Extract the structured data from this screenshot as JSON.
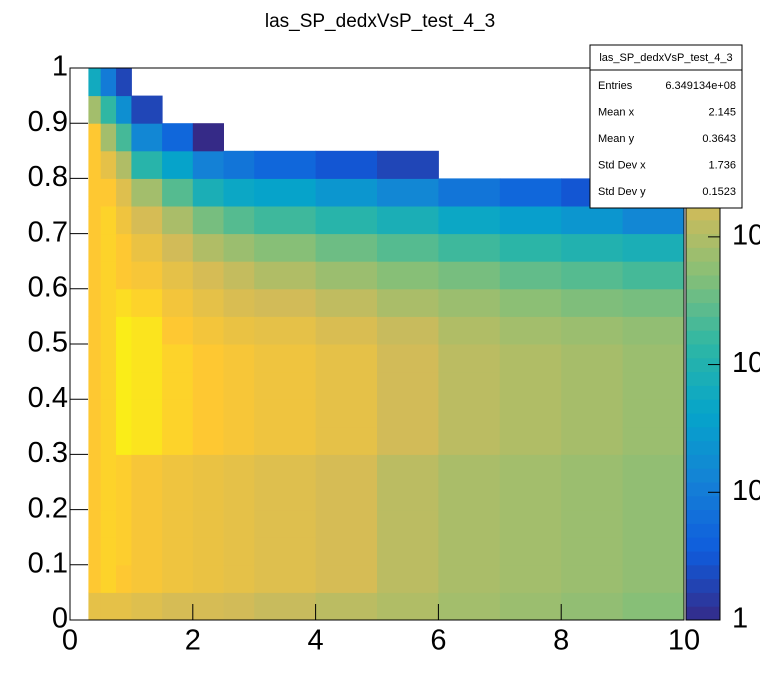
{
  "chart_data": {
    "type": "heatmap",
    "title": "las_SP_dedxVsP_test_4_3",
    "xlim": [
      0,
      10
    ],
    "ylim": [
      0,
      1
    ],
    "xticks": [
      0,
      2,
      4,
      6,
      8,
      10
    ],
    "yticks": [
      0,
      0.1,
      0.2,
      0.3,
      0.4,
      0.5,
      0.6,
      0.7,
      0.8,
      0.9,
      1
    ],
    "zlim": [
      1,
      21000
    ],
    "zlog": true,
    "zticks": [
      1,
      10,
      {
        "value": 100,
        "label": "10"
      },
      {
        "value": 1000,
        "label": "10"
      }
    ],
    "colormap": [
      "#352a87",
      "#0f5cdd",
      "#1481d6",
      "#06a4ca",
      "#2eb7a4",
      "#87bf77",
      "#d1bb59",
      "#fec832",
      "#f9fb0e"
    ],
    "xbins": [
      0,
      0.3,
      0.5,
      0.75,
      1,
      1.5,
      2,
      2.5,
      3,
      4,
      5,
      6,
      7,
      8,
      9,
      10
    ],
    "ybins": [
      0,
      0.05,
      0.1,
      0.15,
      0.2,
      0.25,
      0.3,
      0.35,
      0.4,
      0.45,
      0.5,
      0.55,
      0.6,
      0.65,
      0.7,
      0.75,
      0.8,
      0.85,
      0.9,
      0.95,
      1
    ],
    "z": [
      [
        0,
        0,
        0,
        0,
        0,
        0,
        0,
        0,
        0,
        0,
        0,
        0,
        0,
        0,
        0,
        0,
        0,
        0,
        0,
        0
      ],
      [
        3000,
        6000,
        6000,
        6000,
        6000,
        6000,
        6000,
        6000,
        6000,
        6000,
        6000,
        6000,
        6000,
        6000,
        6000,
        6000,
        6000,
        6000,
        800,
        60
      ],
      [
        3000,
        8000,
        8000,
        8000,
        8000,
        8000,
        8000,
        8000,
        8000,
        8000,
        8000,
        8000,
        8000,
        8000,
        8000,
        6000,
        3000,
        800,
        150,
        10
      ],
      [
        3000,
        6000,
        7000,
        7000,
        7000,
        7000,
        15000,
        15000,
        15000,
        15000,
        15000,
        10000,
        6000,
        6000,
        4000,
        2500,
        1000,
        200,
        20,
        2
      ],
      [
        2500,
        5000,
        5000,
        5000,
        5000,
        5000,
        12000,
        12000,
        12000,
        12000,
        12000,
        8000,
        5000,
        3500,
        2000,
        800,
        120,
        15,
        2,
        0
      ],
      [
        2000,
        4000,
        4000,
        4000,
        4000,
        4000,
        8000,
        8000,
        8000,
        8000,
        6000,
        4500,
        3000,
        1800,
        900,
        250,
        40,
        5,
        0,
        0
      ],
      [
        2000,
        3500,
        3500,
        3500,
        3500,
        3500,
        6000,
        6000,
        6000,
        6000,
        4500,
        3000,
        2000,
        1000,
        400,
        80,
        12,
        1,
        0,
        0
      ],
      [
        1800,
        3000,
        3000,
        3000,
        3000,
        3000,
        5000,
        5000,
        5000,
        5000,
        3500,
        2200,
        1400,
        700,
        250,
        50,
        8,
        0,
        0,
        0
      ],
      [
        1500,
        2500,
        2500,
        2500,
        2500,
        2500,
        4000,
        4000,
        4000,
        4000,
        3000,
        1800,
        1000,
        500,
        180,
        40,
        5,
        0,
        0,
        0
      ],
      [
        1200,
        2000,
        2000,
        2000,
        2000,
        2000,
        3000,
        3000,
        3000,
        3000,
        2200,
        1300,
        700,
        350,
        120,
        25,
        3,
        0,
        0,
        0
      ],
      [
        1000,
        1200,
        1200,
        1200,
        1200,
        1200,
        1800,
        1800,
        1800,
        1800,
        1500,
        900,
        500,
        250,
        80,
        15,
        2,
        0,
        0,
        0
      ],
      [
        800,
        900,
        900,
        900,
        900,
        900,
        1200,
        1200,
        1200,
        1200,
        1000,
        700,
        400,
        180,
        50,
        8,
        0,
        0,
        0,
        0
      ],
      [
        700,
        800,
        800,
        800,
        800,
        800,
        1000,
        1000,
        1000,
        1000,
        800,
        550,
        300,
        130,
        35,
        5,
        0,
        0,
        0,
        0
      ],
      [
        600,
        700,
        700,
        700,
        700,
        700,
        850,
        850,
        850,
        850,
        700,
        450,
        250,
        100,
        25,
        3,
        0,
        0,
        0,
        0
      ],
      [
        500,
        600,
        600,
        600,
        600,
        600,
        700,
        700,
        700,
        700,
        600,
        400,
        200,
        80,
        15,
        2,
        0,
        0,
        0,
        0
      ]
    ],
    "stats": [
      {
        "label": "Entries",
        "value": "6.349134e+08"
      },
      {
        "label": "Mean x",
        "value": 2.145
      },
      {
        "label": "Mean y",
        "value": 0.3643
      },
      {
        "label": "Std Dev x",
        "value": 1.736
      },
      {
        "label": "Std Dev y",
        "value": 0.1523
      }
    ]
  }
}
